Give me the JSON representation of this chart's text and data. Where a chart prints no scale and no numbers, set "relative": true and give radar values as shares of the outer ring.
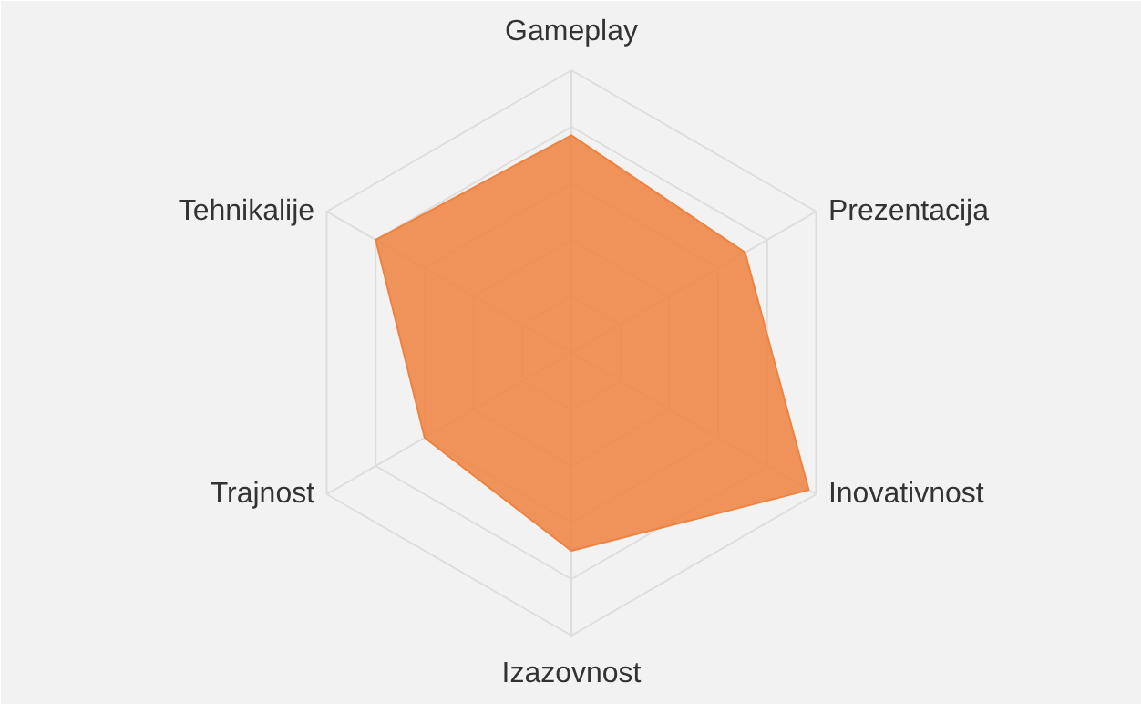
{
  "chart_data": {
    "type": "radar",
    "relative": true,
    "grid": true,
    "categories": [
      "Gameplay",
      "Prezentacija",
      "Inovativnost",
      "Izazovnost",
      "Trajnost",
      "Tehnikalije"
    ],
    "series": [
      {
        "color": "#ee8240",
        "values": [
          0.77,
          0.71,
          0.97,
          0.7,
          0.6,
          0.8
        ]
      }
    ]
  }
}
